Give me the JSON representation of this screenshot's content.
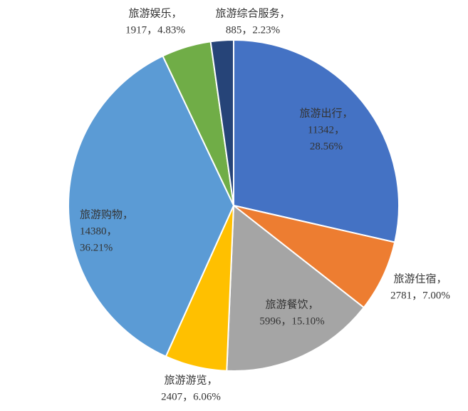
{
  "chart_data": {
    "type": "pie",
    "categories": [
      "旅游出行，",
      "旅游住宿，",
      "旅游餐饮，",
      "旅游游览，",
      "旅游购物，",
      "旅游娱乐，",
      "旅游综合服务，"
    ],
    "values": [
      11342,
      2781,
      5996,
      2407,
      14380,
      1917,
      885
    ],
    "value_labels": [
      [
        "11342，",
        "28.56%"
      ],
      [
        "2781，7.00%"
      ],
      [
        "5996，15.10%"
      ],
      [
        "2407，6.06%"
      ],
      [
        "14380，",
        "36.21%"
      ],
      [
        "1917，4.83%"
      ],
      [
        "885，2.23%"
      ]
    ],
    "colors": [
      "#4472c4",
      "#ed7d31",
      "#a5a5a5",
      "#ffc000",
      "#5b9bd5",
      "#70ad47",
      "#264478"
    ]
  }
}
